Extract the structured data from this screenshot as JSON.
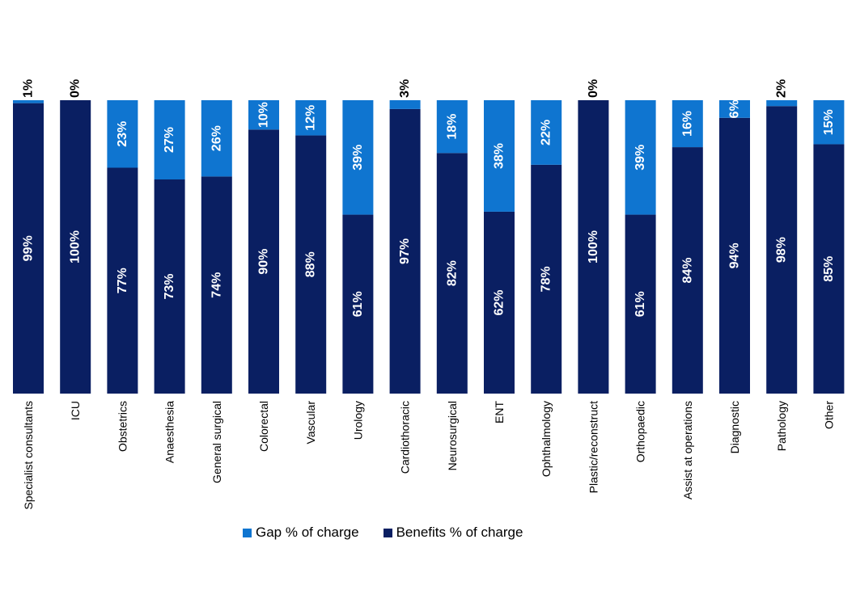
{
  "chart_data": {
    "type": "bar",
    "stacked": true,
    "categories": [
      "Specialist consultants",
      "ICU",
      "Obstetrics",
      "Anaesthesia",
      "General surgical",
      "Colorectal",
      "Vascular",
      "Urology",
      "Cardiothoracic",
      "Neurosurgical",
      "ENT",
      "Ophthalmology",
      "Plastic/reconstruct",
      "Orthopaedic",
      "Assist at operations",
      "Diagnostic",
      "Pathology",
      "Other"
    ],
    "series": [
      {
        "name": "Benefits % of charge",
        "color": "#0a1f62",
        "values": [
          99,
          100,
          77,
          73,
          74,
          90,
          88,
          61,
          97,
          82,
          62,
          78,
          100,
          61,
          84,
          94,
          98,
          85
        ]
      },
      {
        "name": "Gap % of charge",
        "color": "#0f75d0",
        "values": [
          1,
          0,
          23,
          27,
          26,
          10,
          12,
          39,
          3,
          18,
          38,
          22,
          0,
          39,
          16,
          6,
          2,
          15
        ]
      }
    ],
    "ylim": [
      0,
      100
    ],
    "grid": false,
    "legend_position": "bottom",
    "data_label_suffix": "%"
  }
}
